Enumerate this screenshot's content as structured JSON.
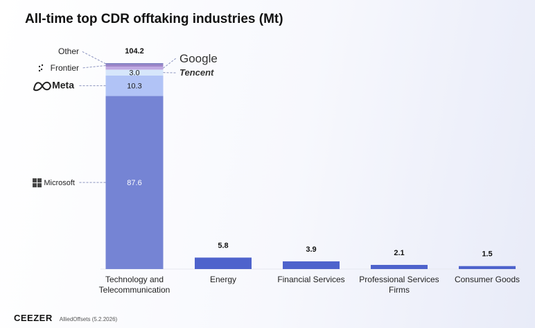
{
  "chart_data": {
    "type": "bar",
    "title": "All-time top CDR offtaking industries (Mt)",
    "unit": "Mt",
    "categories": [
      {
        "label": [
          "Technology and",
          "Telecommunication"
        ],
        "total": 104.2,
        "total_label": "104.2"
      },
      {
        "label": [
          "Energy"
        ],
        "total": 5.8,
        "total_label": "5.8"
      },
      {
        "label": [
          "Financial Services"
        ],
        "total": 3.9,
        "total_label": "3.9"
      },
      {
        "label": [
          "Professional Services",
          "Firms"
        ],
        "total": 2.1,
        "total_label": "2.1"
      },
      {
        "label": [
          "Consumer Goods"
        ],
        "total": 1.5,
        "total_label": "1.5"
      }
    ],
    "stack_breakdown": [
      {
        "company": "Microsoft",
        "value": 87.6,
        "value_label": "87.6",
        "color": "#7584d4",
        "label_color": "#ffffff",
        "side": "left"
      },
      {
        "company": "Meta",
        "value": 10.3,
        "value_label": "10.3",
        "color": "#b1c3f6",
        "label_color": "#222222",
        "side": "left"
      },
      {
        "company": "Tencent",
        "value": 3.0,
        "value_label": "3.0",
        "color": "#d6e6fb",
        "label_color": "#222222",
        "side": "right"
      },
      {
        "company": "Google",
        "value": 1.5,
        "value_label": "",
        "color": "#c0a9e2",
        "label_color": "#222222",
        "side": "right"
      },
      {
        "company": "Frontier",
        "value": 1.1,
        "value_label": "",
        "color": "#9e86c8",
        "label_color": "#222222",
        "side": "left"
      },
      {
        "company": "Other",
        "value": 0.7,
        "value_label": "",
        "color": "#8585c4",
        "label_color": "#222222",
        "side": "left"
      }
    ],
    "single_bar_color": "#4e63cc",
    "ylim": [
      0,
      104.2
    ],
    "xlabel": "",
    "ylabel": "",
    "grid": false,
    "legend": "none"
  },
  "footer": {
    "brand": "CEEZER",
    "source": "AlliedOffsets (5.2.2026)"
  }
}
